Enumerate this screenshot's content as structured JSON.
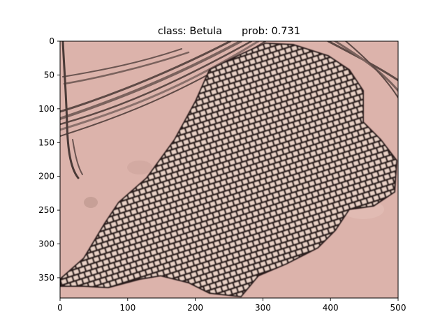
{
  "figure": {
    "title_class_label": "class: Betula",
    "title_prob_label": "prob: 0.731",
    "image_description": "micrograph",
    "colors": {
      "background": "#dcb3ab",
      "cell_wall": "#2a1d1b",
      "cell_fill": "#e9d1c6",
      "fiber": "#6b5551"
    },
    "x_axis": {
      "range": [
        0,
        500
      ],
      "ticks": [
        "0",
        "100",
        "200",
        "300",
        "400",
        "500"
      ]
    },
    "y_axis": {
      "range": [
        0,
        380
      ],
      "inverted": true,
      "ticks": [
        "0",
        "50",
        "100",
        "150",
        "200",
        "250",
        "300",
        "350"
      ]
    }
  }
}
